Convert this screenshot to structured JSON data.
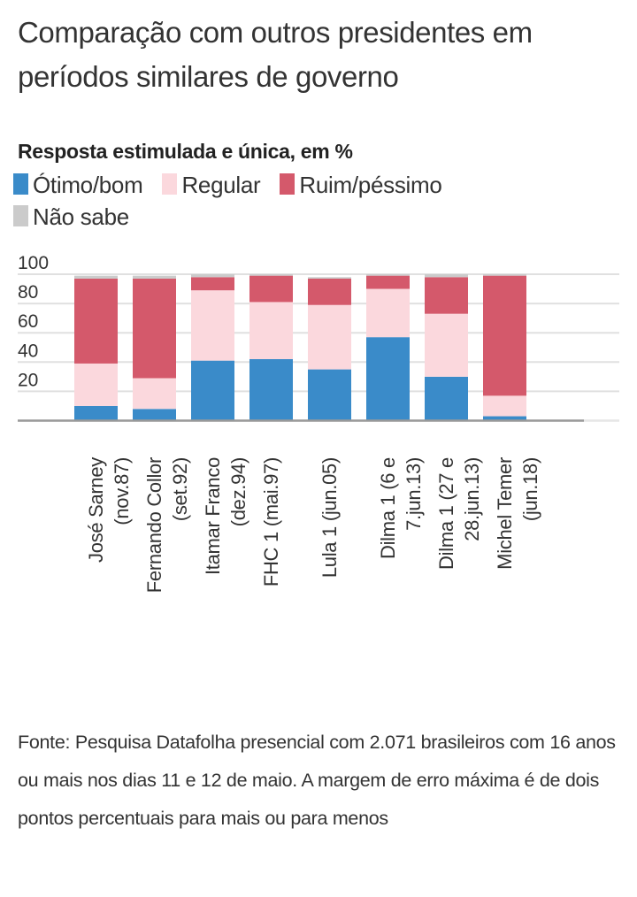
{
  "title": "Comparação com outros presidentes em períodos similares de governo",
  "subtitle": "Resposta estimulada e única, em %",
  "legend": [
    {
      "label": "Ótimo/bom",
      "color": "#3a8bc9"
    },
    {
      "label": "Regular",
      "color": "#fbd8dd"
    },
    {
      "label": "Ruim/péssimo",
      "color": "#d4596b"
    },
    {
      "label": "Não sabe",
      "color": "#cbcbcb"
    }
  ],
  "footer": "Fonte: Pesquisa Datafolha presencial com 2.071 brasileiros com 16 anos ou mais nos dias 11 e 12 de maio. A margem de erro máxima é de dois pontos percentuais para mais ou para menos",
  "chart_data": {
    "type": "bar",
    "stacked": true,
    "title": "Comparação com outros presidentes em períodos similares de governo",
    "subtitle": "Resposta estimulada e única, em %",
    "xlabel": "",
    "ylabel": "",
    "ylim": [
      0,
      100
    ],
    "yticks": [
      20,
      40,
      60,
      80,
      100
    ],
    "ytick_labels": [
      "20",
      "40",
      "60",
      "80",
      "100"
    ],
    "grid": true,
    "legend_position": "top-left",
    "categories": [
      [
        "José Sarney",
        "(nov.87)"
      ],
      [
        "Fernando Collor",
        "(set.92)"
      ],
      [
        "Itamar Franco",
        "(dez.94)"
      ],
      [
        "FHC 1 (mai.97)"
      ],
      [
        "Lula 1 (jun.05)"
      ],
      [
        "Dilma 1 (6 e",
        "7.jun.13)"
      ],
      [
        "Dilma 1 (27 e",
        "28.jun.13)"
      ],
      [
        "Michel Temer",
        "(jun.18)"
      ]
    ],
    "series": [
      {
        "name": "Ótimo/bom",
        "color": "#3a8bc9",
        "values": [
          10,
          8,
          41,
          42,
          35,
          57,
          30,
          3
        ]
      },
      {
        "name": "Regular",
        "color": "#fbd8dd",
        "values": [
          29,
          21,
          48,
          39,
          44,
          33,
          43,
          14
        ]
      },
      {
        "name": "Ruim/péssimo",
        "color": "#d4596b",
        "values": [
          58,
          68,
          9,
          18,
          18,
          9,
          25,
          82
        ]
      },
      {
        "name": "Não sabe",
        "color": "#cbcbcb",
        "values": [
          2,
          2,
          2,
          1,
          1,
          1,
          2,
          1
        ]
      }
    ]
  }
}
